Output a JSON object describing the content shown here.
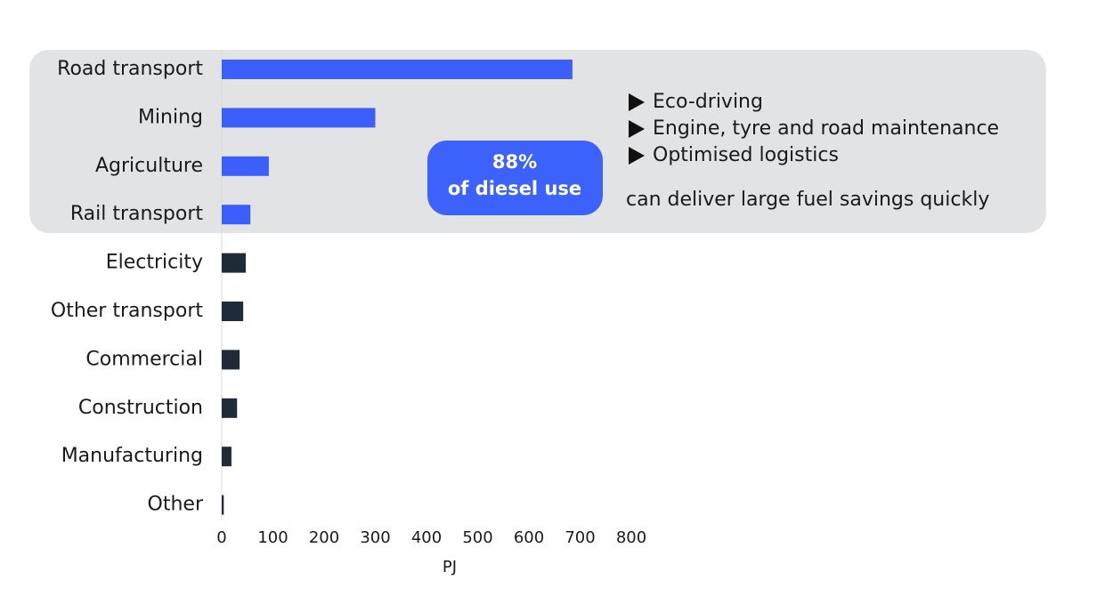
{
  "chart_data": {
    "type": "bar",
    "orientation": "horizontal",
    "categories": [
      "Road transport",
      "Mining",
      "Agriculture",
      "Rail transport",
      "Electricity",
      "Other transport",
      "Commercial",
      "Construction",
      "Manufacturing",
      "Other"
    ],
    "values": [
      685,
      300,
      92,
      56,
      47,
      42,
      35,
      30,
      19,
      4
    ],
    "colors": [
      "#3c5ffb",
      "#3c5ffb",
      "#3c5ffb",
      "#3c5ffb",
      "#1f2b38",
      "#1f2b38",
      "#1f2b38",
      "#1f2b38",
      "#1f2b38",
      "#1f2b38"
    ],
    "xlim": [
      0,
      800
    ],
    "xticks": [
      0,
      100,
      200,
      300,
      400,
      500,
      600,
      700,
      800
    ],
    "x_label": "PJ",
    "grid": false,
    "badge": [
      "88%",
      "of diesel use"
    ],
    "bullets": [
      "Eco-driving",
      "Engine, tyre and road maintenance",
      "Optimised logistics"
    ],
    "note": "can deliver large fuel savings quickly"
  }
}
